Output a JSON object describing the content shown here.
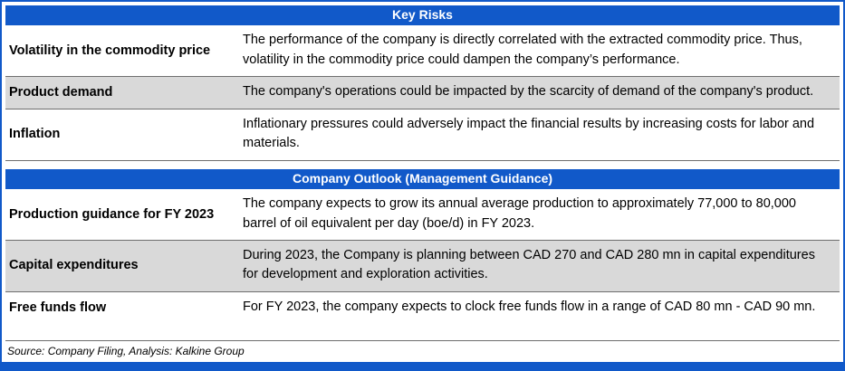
{
  "colors": {
    "accent": "#1159C9",
    "row-alt": "#D9D9D9"
  },
  "sections": [
    {
      "title": "Key Risks",
      "rows": [
        {
          "label": "Volatility in the commodity price",
          "text": "The performance of the company is directly correlated with the extracted commodity price. Thus, volatility in the commodity price could dampen the company’s performance."
        },
        {
          "label": "Product demand",
          "text": "The company's operations could be impacted by the scarcity of demand of the company's product."
        },
        {
          "label": "Inflation",
          "text": "Inflationary pressures could adversely impact the financial results by increasing costs for labor and materials."
        }
      ]
    },
    {
      "title": "Company Outlook (Management Guidance)",
      "rows": [
        {
          "label": "Production guidance for FY 2023",
          "text": "The company expects to grow its annual average production to approximately 77,000 to 80,000 barrel of oil equivalent per day (boe/d) in FY 2023."
        },
        {
          "label": "Capital expenditures",
          "text": "During 2023, the Company is planning between CAD 270 and CAD 280 mn in capital expenditures for development and exploration activities."
        },
        {
          "label": "Free funds flow",
          "text": "For FY 2023, the company expects to clock free funds flow in a range of CAD 80 mn - CAD 90 mn."
        }
      ]
    }
  ],
  "footer": {
    "source": "Source: Company Filing, Analysis: Kalkine Group"
  }
}
